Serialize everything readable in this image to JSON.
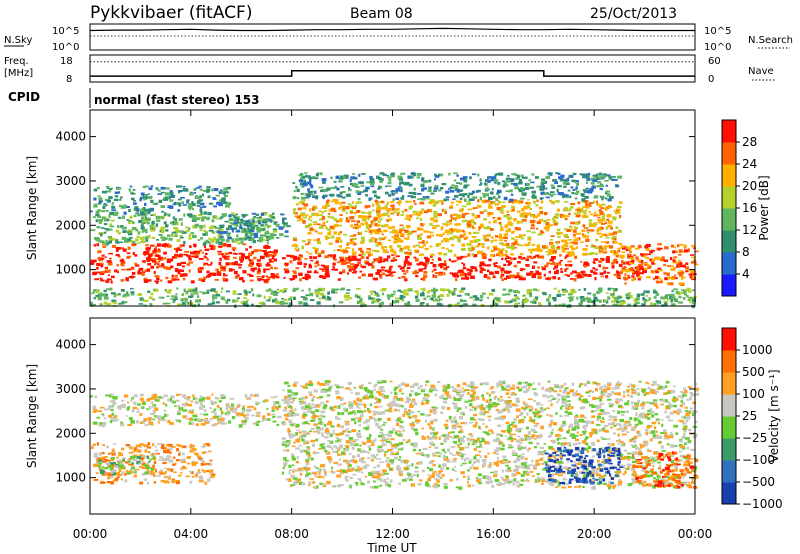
{
  "header": {
    "title": "Pykkvibaer (fitACF)",
    "beam": "Beam 08",
    "date": "25/Oct/2013"
  },
  "chart_data": [
    {
      "type": "line",
      "panel": "noise",
      "left_label": "N.Sky",
      "right_label": "N.Search",
      "left_ticks": [
        "10^5",
        "10^0"
      ],
      "right_ticks": [
        "10^5",
        "10^0"
      ],
      "series": [
        {
          "name": "N.Sky",
          "style": "solid"
        },
        {
          "name": "N.Search",
          "style": "dotted"
        }
      ],
      "x": [
        0,
        1,
        2,
        3,
        4,
        5,
        6,
        7,
        8,
        9,
        10,
        11,
        12,
        13,
        14,
        15,
        16,
        17,
        18,
        19,
        20,
        21,
        22,
        23,
        24
      ],
      "y_sky": [
        4.6,
        4.7,
        4.7,
        4.8,
        4.9,
        4.7,
        4.6,
        4.6,
        4.7,
        4.8,
        4.8,
        4.9,
        4.9,
        5.0,
        5.1,
        5.0,
        4.9,
        4.8,
        4.8,
        4.9,
        4.8,
        4.7,
        4.6,
        4.6,
        4.6
      ]
    },
    {
      "type": "line",
      "panel": "frequency",
      "left_label_top": "Freq.",
      "left_label_bottom": "[MHz]",
      "right_label": "Nave",
      "left_ticks": [
        "18",
        "8"
      ],
      "right_ticks": [
        "60",
        "0"
      ],
      "ylim": [
        8,
        18
      ],
      "y2lim": [
        0,
        60
      ],
      "freq_steps": [
        {
          "x": 0,
          "y": 10.2
        },
        {
          "x": 8.0,
          "y": 12.2
        },
        {
          "x": 18.0,
          "y": 10.2
        },
        {
          "x": 24,
          "y": 10.2
        }
      ],
      "nave": 45
    },
    {
      "type": "text",
      "panel": "cpid",
      "label": "CPID",
      "text": "normal (fast stereo) 153"
    },
    {
      "type": "heatmap",
      "panel": "power",
      "ylabel": "Slant Range [km]",
      "ylim": [
        180,
        4600
      ],
      "yticks": [
        1000,
        2000,
        3000,
        4000
      ],
      "colorbar_label": "Power [dB]",
      "colorbar_ticks": [
        4,
        8,
        12,
        16,
        20,
        24,
        28
      ],
      "colorbar_range": [
        0,
        32
      ],
      "colors": [
        "#1a1aff",
        "#2a6acc",
        "#2f8f6f",
        "#5fb65f",
        "#b4d02a",
        "#ffb000",
        "#ff6400",
        "#ff1000"
      ],
      "echo_bands": [
        {
          "x": [
            0.0,
            7.4
          ],
          "r": [
            750,
            1600
          ],
          "level": 7
        },
        {
          "x": [
            0.0,
            7.3
          ],
          "r": [
            1600,
            2300
          ],
          "level": 3
        },
        {
          "x": [
            0.0,
            5.5
          ],
          "r": [
            2300,
            2900
          ],
          "level": 2
        },
        {
          "x": [
            5.0,
            7.8
          ],
          "r": [
            1700,
            2300
          ],
          "level": 2
        },
        {
          "x": [
            7.6,
            22.0
          ],
          "r": [
            800,
            1350
          ],
          "level": 7
        },
        {
          "x": [
            8.0,
            21.0
          ],
          "r": [
            1350,
            2600
          ],
          "level": 5
        },
        {
          "x": [
            8.0,
            21.0
          ],
          "r": [
            2600,
            3200
          ],
          "level": 2
        },
        {
          "x": [
            21.0,
            24.0
          ],
          "r": [
            700,
            1600
          ],
          "level": 6
        },
        {
          "x": [
            0.0,
            24.0
          ],
          "r": [
            200,
            600
          ],
          "level": 3
        }
      ]
    },
    {
      "type": "heatmap",
      "panel": "velocity",
      "ylabel": "Slant Range [km]",
      "ylim": [
        180,
        4600
      ],
      "yticks": [
        1000,
        2000,
        3000,
        4000
      ],
      "colorbar_label": "Velocity [m s⁻¹]",
      "colorbar_ticks": [
        "1000",
        "500",
        "100",
        "25",
        "−25",
        "−100",
        "−500",
        "−1000"
      ],
      "colors": [
        "#1a40b0",
        "#2f70c0",
        "#3a9a6a",
        "#66cc33",
        "#c8c8c0",
        "#ffa020",
        "#ff7000",
        "#ff1000"
      ],
      "echo_bands": [
        {
          "x": [
            0.0,
            7.5
          ],
          "r": [
            2200,
            2900
          ],
          "level": 4
        },
        {
          "x": [
            0.0,
            4.8
          ],
          "r": [
            900,
            1800
          ],
          "level": 5
        },
        {
          "x": [
            0.3,
            2.5
          ],
          "r": [
            1100,
            1500
          ],
          "level": 3
        },
        {
          "x": [
            7.6,
            24.0
          ],
          "r": [
            800,
            3200
          ],
          "level": 4
        },
        {
          "x": [
            18.0,
            21.0
          ],
          "r": [
            900,
            1700
          ],
          "level": 0
        },
        {
          "x": [
            21.5,
            24.0
          ],
          "r": [
            800,
            1600
          ],
          "level": 6
        }
      ]
    }
  ],
  "x_axis": {
    "label": "Time UT",
    "ticks": [
      "00:00",
      "04:00",
      "08:00",
      "12:00",
      "16:00",
      "20:00",
      "00:00"
    ],
    "range": [
      0,
      24
    ]
  }
}
